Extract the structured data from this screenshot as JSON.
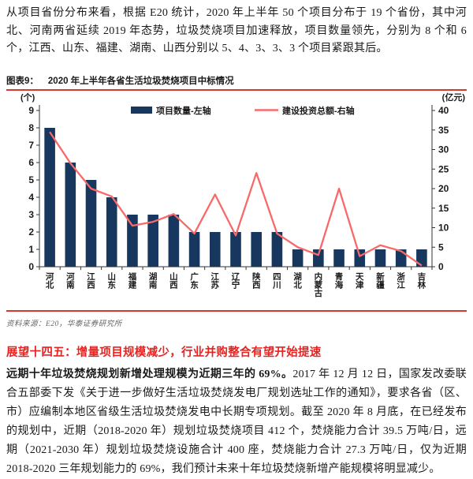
{
  "intro_paragraph": "从项目省份分布来看，根据 E20 统计，2020 年上半年 50 个项目分布于 19 个省份，其中河北、河南两省延续 2019 年态势，垃圾焚烧项目加速释放，项目数量领先，分别为 8 个和 6 个，江西、山东、福建、湖南、山西分别以 5、4、3、3、3 个项目紧跟其后。",
  "figure": {
    "label": "图表9：",
    "title": "2020 年上半年各省生活垃圾焚烧项目中标情况",
    "source": "资料来源：E20，华泰证券研究所",
    "left_axis_unit": "(个)",
    "right_axis_unit": "(亿元)"
  },
  "chart_data": {
    "type": "bar",
    "subtype": "dual-axis bar + line",
    "title": "2020 年上半年各省生活垃圾焚烧项目中标情况",
    "categories": [
      "河北",
      "河南",
      "江西",
      "山东",
      "福建",
      "湖南",
      "山西",
      "广东",
      "江苏",
      "辽宁",
      "陕西",
      "四川",
      "湖北",
      "内蒙古",
      "青海",
      "天津",
      "新疆",
      "浙江",
      "吉林"
    ],
    "series": [
      {
        "name": "项目数量-左轴",
        "type": "bar",
        "axis": "left",
        "unit": "个",
        "values": [
          8,
          6,
          5,
          4,
          3,
          3,
          3,
          2,
          2,
          2,
          2,
          2,
          1,
          1,
          1,
          1,
          1,
          1,
          1
        ]
      },
      {
        "name": "建设投资总额-右轴",
        "type": "line",
        "axis": "right",
        "unit": "亿元",
        "values": [
          34.5,
          26.5,
          20,
          18,
          10.5,
          11.5,
          13.5,
          8.5,
          18.5,
          8,
          24,
          8.5,
          5,
          3,
          20,
          2.7,
          5.5,
          4,
          0.3
        ]
      }
    ],
    "left_axis": {
      "label": "(个)",
      "min": 0,
      "max": 9,
      "step": 1
    },
    "right_axis": {
      "label": "(亿元)",
      "min": 0,
      "max": 40,
      "step": 5
    },
    "grid": false,
    "legend_position": "top-center"
  },
  "section": {
    "heading": "展望十四五：增量项目规模减少，行业并购整合有望开始提速",
    "lead_bold": "远期十年垃圾焚烧规划新增处理规模为近期三年的 69%。",
    "body": "2017 年 12 月 12 日，国家发改委联合五部委下发《关于进一步做好生活垃圾焚烧发电厂规划选址工作的通知》，要求各省（区、市）应编制本地区省级生活垃圾焚烧发电中长期专项规划。截至 2020 年 8 月底，在已经发布的规划中，近期（2018-2020 年）规划垃圾焚烧项目 412 个，焚烧能力合计 39.5 万吨/日，远期（2021-2030 年）规划垃圾焚烧设施合计 400 座，焚烧能力合计 27.3 万吨/日，仅为近期 2018-2020 三年规划能力的 69%，我们预计未来十年垃圾焚烧新增产能规模将明显减少。"
  },
  "colors": {
    "bar": "#17375e",
    "line": "#f8696a",
    "rule": "#d9372b",
    "heading": "#e8221f",
    "axis": "#333333",
    "source_text": "#666666"
  }
}
